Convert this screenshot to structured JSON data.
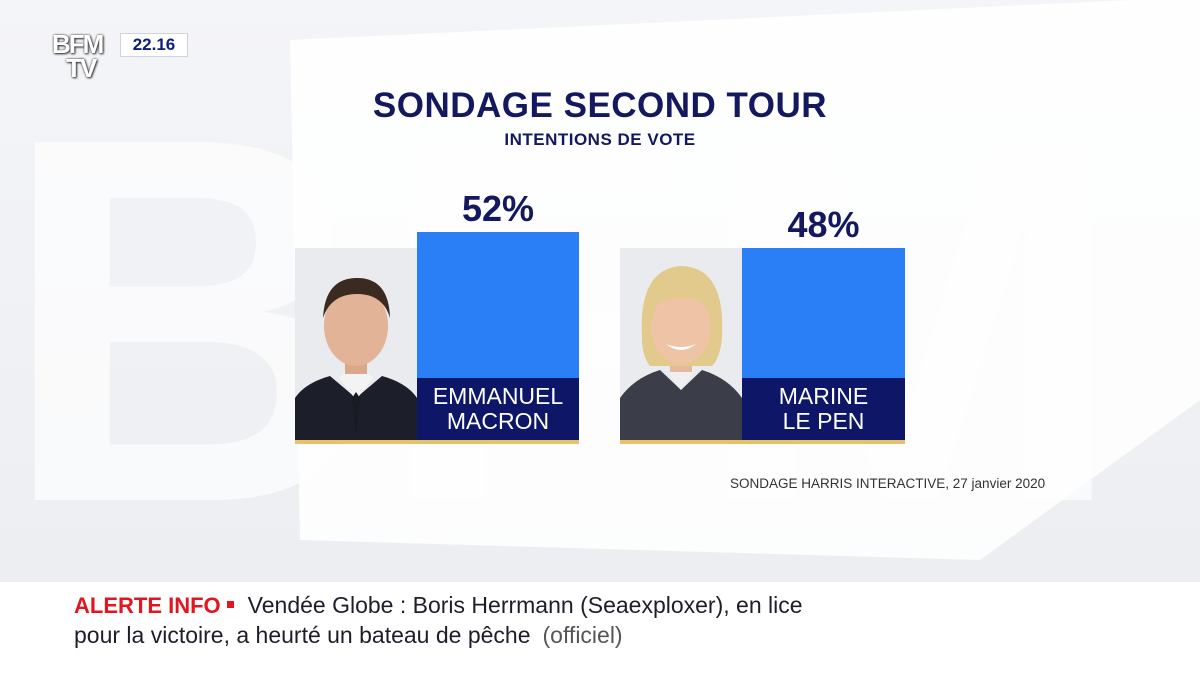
{
  "channel": {
    "logo_line1": "BFM",
    "logo_line2": "TV",
    "time": "22.16"
  },
  "chart_data": {
    "type": "bar",
    "title": "SONDAGE SECOND TOUR",
    "subtitle": "INTENTIONS DE VOTE",
    "categories": [
      "EMMANUEL MACRON",
      "MARINE LE PEN"
    ],
    "name_lines": [
      [
        "EMMANUEL",
        "MACRON"
      ],
      [
        "MARINE",
        "LE PEN"
      ]
    ],
    "values": [
      52,
      48
    ],
    "value_labels": [
      "52%",
      "48%"
    ],
    "ylim": [
      0,
      100
    ],
    "source": "SONDAGE HARRIS INTERACTIVE, 27 janvier 2020",
    "colors": {
      "bar": "#2b7ff6",
      "name_band": "#0e1668",
      "baseline": "#e7c267",
      "text": "#14185e"
    }
  },
  "ticker": {
    "label": "ALERTE INFO",
    "line1": "Vendée Globe : Boris Herrmann (Seaexploxer), en lice",
    "line2": "pour la victoire, a heurté un bateau de pêche",
    "note": "(officiel)"
  }
}
